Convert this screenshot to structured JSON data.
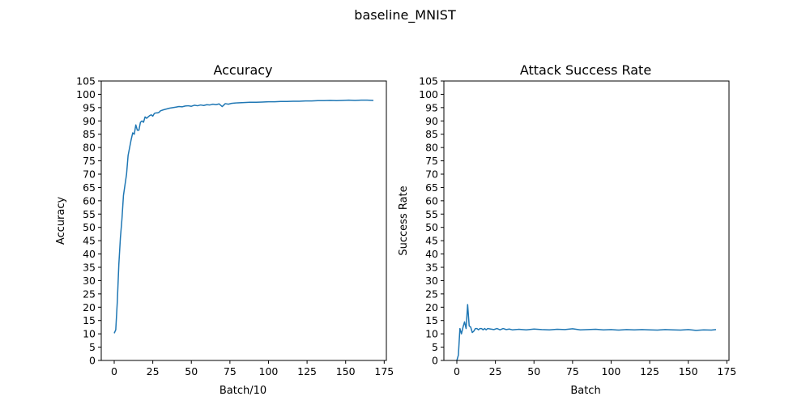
{
  "suptitle": "baseline_MNIST",
  "colors": {
    "line": "#1f77b4",
    "axis": "#000000",
    "background": "#ffffff"
  },
  "chart_data": [
    {
      "type": "line",
      "title": "Accuracy",
      "xlabel": "Batch/10",
      "ylabel": "Accuracy",
      "xlim": [
        -8.4,
        176.4
      ],
      "ylim": [
        0,
        105
      ],
      "xticks": [
        0,
        25,
        50,
        75,
        100,
        125,
        150,
        175
      ],
      "yticks": [
        0,
        5,
        10,
        15,
        20,
        25,
        30,
        35,
        40,
        45,
        50,
        55,
        60,
        65,
        70,
        75,
        80,
        85,
        90,
        95,
        100,
        105
      ],
      "grid": false,
      "series": [
        {
          "x": [
            0,
            1,
            2,
            3,
            4,
            5,
            6,
            7,
            8,
            9,
            10,
            11,
            12,
            13,
            14,
            15,
            16,
            17,
            18,
            19,
            20,
            21,
            22,
            23,
            24,
            25,
            26,
            27,
            28,
            29,
            30,
            32,
            34,
            36,
            38,
            40,
            42,
            44,
            46,
            48,
            50,
            52,
            54,
            56,
            58,
            60,
            62,
            64,
            66,
            68,
            70,
            72,
            74,
            76,
            78,
            80,
            84,
            88,
            92,
            96,
            100,
            104,
            108,
            112,
            116,
            120,
            124,
            128,
            132,
            136,
            140,
            144,
            148,
            152,
            156,
            160,
            164,
            168
          ],
          "y": [
            10.2,
            11.5,
            22,
            36,
            46,
            53,
            62,
            66,
            70,
            77,
            80,
            83,
            85.5,
            85,
            88.5,
            86.5,
            86.5,
            89.5,
            90,
            89.5,
            91.5,
            91,
            91.5,
            92,
            92.3,
            91.8,
            92.8,
            93,
            93,
            93.2,
            93.8,
            94.2,
            94.5,
            94.8,
            95,
            95.2,
            95.4,
            95.3,
            95.6,
            95.7,
            95.5,
            95.9,
            95.7,
            96,
            95.8,
            96.1,
            96,
            96.3,
            96.1,
            96.4,
            95.4,
            96.5,
            96.3,
            96.6,
            96.7,
            96.8,
            96.9,
            97,
            97,
            97.1,
            97.2,
            97.2,
            97.3,
            97.3,
            97.4,
            97.4,
            97.5,
            97.5,
            97.6,
            97.6,
            97.7,
            97.6,
            97.7,
            97.8,
            97.7,
            97.8,
            97.8,
            97.7
          ]
        }
      ]
    },
    {
      "type": "line",
      "title": "Attack Success Rate",
      "xlabel": "Batch",
      "ylabel": "Success Rate",
      "xlim": [
        -8.4,
        176.4
      ],
      "ylim": [
        0,
        105
      ],
      "xticks": [
        0,
        25,
        50,
        75,
        100,
        125,
        150,
        175
      ],
      "yticks": [
        0,
        5,
        10,
        15,
        20,
        25,
        30,
        35,
        40,
        45,
        50,
        55,
        60,
        65,
        70,
        75,
        80,
        85,
        90,
        95,
        100,
        105
      ],
      "grid": false,
      "series": [
        {
          "x": [
            0,
            1,
            2,
            3,
            4,
            5,
            6,
            7,
            8,
            9,
            10,
            11,
            12,
            13,
            14,
            15,
            16,
            17,
            18,
            19,
            20,
            22,
            24,
            26,
            28,
            30,
            32,
            34,
            36,
            38,
            40,
            45,
            50,
            55,
            60,
            65,
            70,
            75,
            80,
            85,
            90,
            95,
            100,
            105,
            110,
            115,
            120,
            125,
            130,
            135,
            140,
            145,
            150,
            155,
            160,
            165,
            168
          ],
          "y": [
            0,
            2,
            12,
            10,
            12.5,
            14.5,
            12,
            21,
            13,
            12.5,
            10.5,
            11,
            12,
            12,
            11.5,
            12,
            12,
            11.5,
            12,
            11.5,
            12,
            11.8,
            11.6,
            12,
            11.5,
            12,
            11.6,
            11.8,
            11.5,
            11.6,
            11.7,
            11.5,
            11.8,
            11.6,
            11.5,
            11.7,
            11.6,
            11.9,
            11.5,
            11.6,
            11.7,
            11.5,
            11.6,
            11.4,
            11.6,
            11.5,
            11.6,
            11.5,
            11.4,
            11.6,
            11.5,
            11.4,
            11.6,
            11.3,
            11.5,
            11.4,
            11.6
          ]
        }
      ]
    }
  ]
}
